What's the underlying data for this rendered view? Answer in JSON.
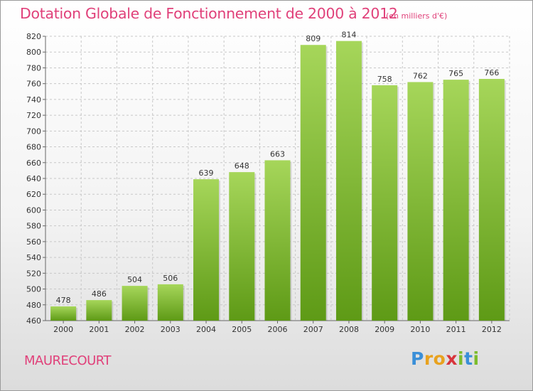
{
  "title": "Dotation Globale de Fonctionnement de 2000 à 2012",
  "unit_note": "(en milliers d'€)",
  "commune": "MAURECOURT",
  "logo": {
    "letters": [
      "P",
      "r",
      "o",
      "x",
      "i",
      "t",
      "i"
    ],
    "colors": [
      "#3a8fd8",
      "#e8a21f",
      "#e8a21f",
      "#d8343c",
      "#7cbc2c",
      "#3a8fd8",
      "#7cbc2c"
    ]
  },
  "colors": {
    "bar_top": "#a6d65a",
    "bar_bottom": "#5e9a16",
    "title": "#e0417a",
    "grid": "#c8c8c8"
  },
  "chart_data": {
    "type": "bar",
    "title": "Dotation Globale de Fonctionnement de 2000 à 2012",
    "subtitle": "(en milliers d'€)",
    "categories": [
      "2000",
      "2001",
      "2002",
      "2003",
      "2004",
      "2005",
      "2006",
      "2007",
      "2008",
      "2009",
      "2010",
      "2011",
      "2012"
    ],
    "values": [
      478,
      486,
      504,
      506,
      639,
      648,
      663,
      809,
      814,
      758,
      762,
      765,
      766
    ],
    "value_labels": [
      "478",
      "486",
      "504",
      "506",
      "639",
      "648",
      "663",
      "809",
      "814",
      "758",
      "762",
      "765",
      "766"
    ],
    "ylim": [
      460,
      820
    ],
    "yticks": [
      460,
      480,
      500,
      520,
      540,
      560,
      580,
      600,
      620,
      640,
      660,
      680,
      700,
      720,
      740,
      760,
      780,
      800,
      820
    ],
    "ytick_labels": [
      "460",
      "480",
      "500",
      "520",
      "540",
      "560",
      "580",
      "600",
      "620",
      "640",
      "660",
      "680",
      "700",
      "720",
      "740",
      "760",
      "780",
      "800",
      "820"
    ],
    "grid": "horizontal",
    "xlabel": "",
    "ylabel": ""
  }
}
